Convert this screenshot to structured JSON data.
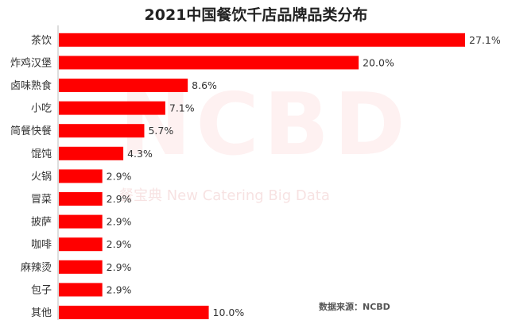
{
  "chart_data": {
    "type": "bar",
    "orientation": "horizontal",
    "title": "2021中国餐饮千店品牌品类分布",
    "categories": [
      "茶饮",
      "炸鸡汉堡",
      "卤味熟食",
      "小吃",
      "简餐快餐",
      "馄饨",
      "火锅",
      "冒菜",
      "披萨",
      "咖啡",
      "麻辣烫",
      "包子",
      "其他"
    ],
    "values": [
      27.1,
      20.0,
      8.6,
      7.1,
      5.7,
      4.3,
      2.9,
      2.9,
      2.9,
      2.9,
      2.9,
      2.9,
      10.0
    ],
    "value_labels": [
      "27.1%",
      "20.0%",
      "8.6%",
      "7.1%",
      "5.7%",
      "4.3%",
      "2.9%",
      "2.9%",
      "2.9%",
      "2.9%",
      "2.9%",
      "2.9%",
      "10.0%"
    ],
    "xlim": [
      0,
      28
    ],
    "grid": false,
    "legend": "none",
    "bar_color": "#ff0000"
  },
  "watermark": {
    "logo": "NCBD",
    "tagline": "餐宝典 New Catering Big Data"
  },
  "source": "数据来源：NCBD"
}
